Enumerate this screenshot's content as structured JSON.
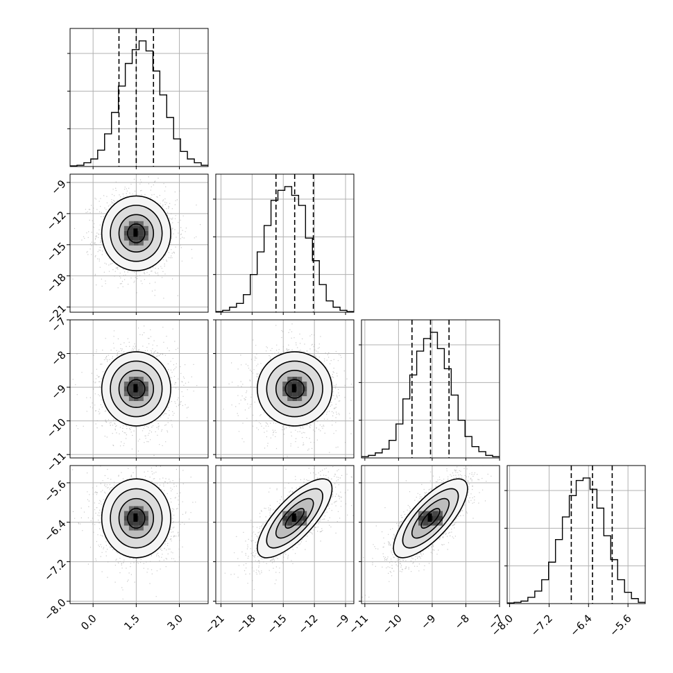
{
  "chart_data": {
    "type": "corner",
    "grid": true,
    "quantiles_shown": [
      0.16,
      0.5,
      0.84
    ],
    "colors": {
      "line": "#000000",
      "grid": "#b0b0b0",
      "points": "#9a9a9a",
      "fill_dark": "#000000",
      "fill_light": "#f5f5f5"
    },
    "parameters": [
      {
        "index": 0,
        "label": "",
        "range": [
          -0.8,
          4.0
        ],
        "ticks": [
          0.0,
          1.5,
          3.0
        ],
        "tick_labels": [
          "0.0",
          "1.5",
          "3.0"
        ],
        "median": 1.5,
        "q16": 0.9,
        "q84": 2.1,
        "sigma": 0.6,
        "hist": [
          0.005,
          0.01,
          0.03,
          0.06,
          0.13,
          0.26,
          0.43,
          0.64,
          0.82,
          0.93,
          1.0,
          0.92,
          0.76,
          0.57,
          0.39,
          0.22,
          0.12,
          0.06,
          0.03,
          0.01
        ]
      },
      {
        "index": 1,
        "label": "",
        "range": [
          -21.5,
          -8.2
        ],
        "ticks": [
          -21,
          -18,
          -15,
          -12,
          -9
        ],
        "tick_labels": [
          "−21",
          "−18",
          "−15",
          "−12",
          "−9"
        ],
        "median": -13.9,
        "q16": -15.7,
        "q84": -12.1,
        "sigma": 1.8,
        "hist": [
          0.005,
          0.015,
          0.04,
          0.07,
          0.14,
          0.3,
          0.48,
          0.69,
          0.89,
          0.97,
          1.0,
          0.93,
          0.85,
          0.59,
          0.41,
          0.22,
          0.09,
          0.04,
          0.015,
          0.005
        ]
      },
      {
        "index": 2,
        "label": "",
        "range": [
          -11.1,
          -7.0
        ],
        "ticks": [
          -11,
          -10,
          -9,
          -8,
          -7
        ],
        "tick_labels": [
          "−11",
          "−10",
          "−9",
          "−8",
          "−7"
        ],
        "median": -9.05,
        "q16": -9.6,
        "q84": -8.5,
        "sigma": 0.55,
        "hist": [
          0.01,
          0.02,
          0.04,
          0.07,
          0.14,
          0.27,
          0.47,
          0.66,
          0.85,
          0.95,
          1.0,
          0.87,
          0.71,
          0.5,
          0.3,
          0.17,
          0.09,
          0.05,
          0.02,
          0.01
        ]
      },
      {
        "index": 3,
        "label": "",
        "range": [
          -8.05,
          -5.25
        ],
        "ticks": [
          -8.0,
          -7.2,
          -6.4,
          -5.6
        ],
        "tick_labels": [
          "−8.0",
          "−7.2",
          "−6.4",
          "−5.6"
        ],
        "median": -6.32,
        "q16": -6.75,
        "q84": -5.92,
        "sigma": 0.4,
        "hist": [
          0.005,
          0.01,
          0.02,
          0.05,
          0.1,
          0.19,
          0.33,
          0.51,
          0.69,
          0.86,
          0.98,
          1.0,
          0.91,
          0.76,
          0.54,
          0.35,
          0.19,
          0.09,
          0.04,
          0.01
        ]
      }
    ],
    "pairs": [
      {
        "x": 0,
        "y": 1,
        "correlation": 0.0
      },
      {
        "x": 0,
        "y": 2,
        "correlation": 0.0
      },
      {
        "x": 1,
        "y": 2,
        "correlation": 0.0
      },
      {
        "x": 0,
        "y": 3,
        "correlation": 0.0
      },
      {
        "x": 1,
        "y": 3,
        "correlation": 0.75
      },
      {
        "x": 2,
        "y": 3,
        "correlation": 0.75
      }
    ],
    "contour_levels_sigma": [
      0.5,
      1.0,
      1.5,
      2.0
    ]
  }
}
